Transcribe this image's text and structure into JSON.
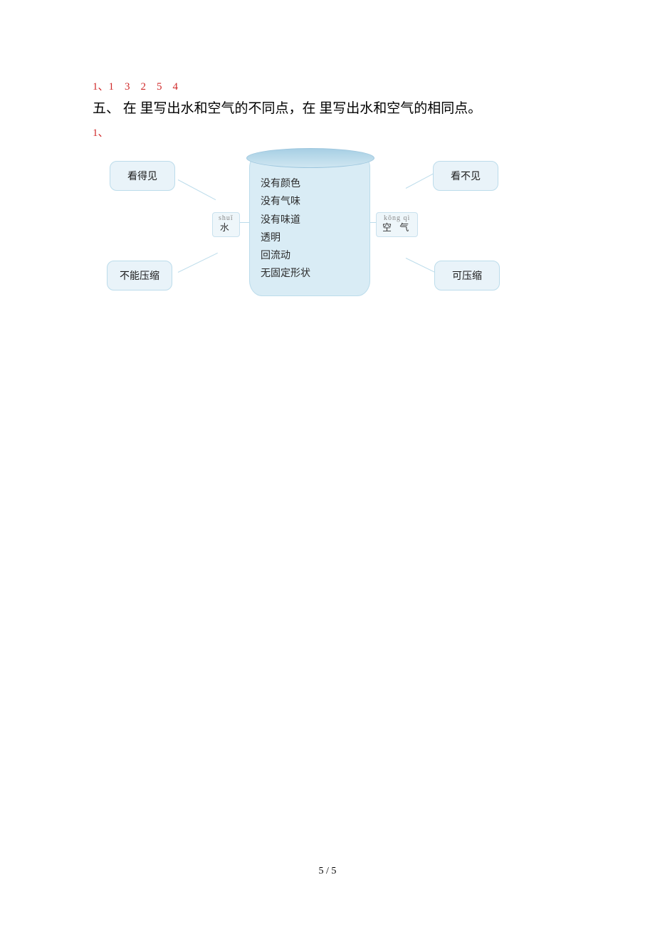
{
  "answer_line": "1、1　3　2　5　4",
  "section_heading": "五、 在 里写出水和空气的不同点，在 里写出水和空气的相同点。",
  "item_number": "1、",
  "diagram": {
    "vessel_lines": [
      "没有颜色",
      "没有气味",
      "没有味道",
      "透明",
      "回流动",
      "无固定形状"
    ],
    "left_hub": {
      "pinyin": "shuǐ",
      "han": "水"
    },
    "right_hub": {
      "pinyin": "kōng qì",
      "han": "空 气"
    },
    "left_top": "看得见",
    "left_bottom": "不能压缩",
    "right_top": "看不见",
    "right_bottom": "可压缩",
    "colors": {
      "box_bg": "#e9f3f9",
      "box_border": "#bcdceb",
      "vessel_bg": "#d9ecf5",
      "vessel_top": "#a7cfe4",
      "text": "#1a1a1a"
    }
  },
  "page_number": "5 / 5"
}
